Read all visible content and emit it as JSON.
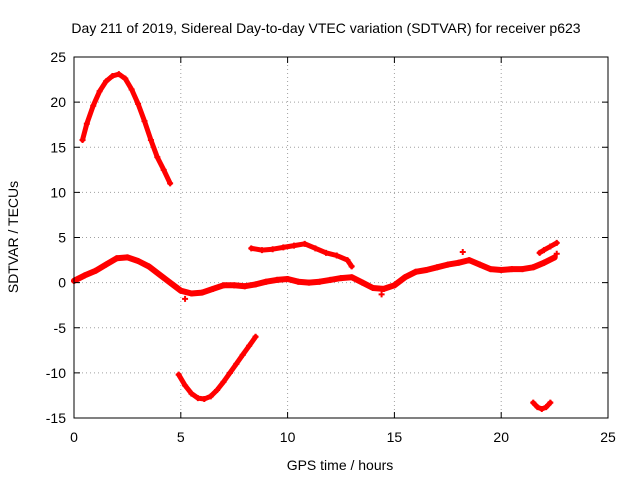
{
  "chart_data": {
    "type": "scatter",
    "title": "Day 211 of 2019, Sidereal Day-to-day VTEC variation (SDTVAR) for receiver p623",
    "xlabel": "GPS time / hours",
    "ylabel": "SDTVAR / TECUs",
    "xlim": [
      0,
      25
    ],
    "ylim": [
      -15,
      25
    ],
    "x_ticks": [
      0,
      5,
      10,
      15,
      20,
      25
    ],
    "y_ticks": [
      -15,
      -10,
      -5,
      0,
      5,
      10,
      15,
      20,
      25
    ],
    "x_tick_labels": [
      "0",
      "5",
      "10",
      "15",
      "20",
      "25"
    ],
    "y_tick_labels": [
      "-15",
      "-10",
      "-5",
      "0",
      "5",
      "10",
      "15",
      "20",
      "25"
    ],
    "grid": true,
    "marker_color": "#ff0000",
    "series": [
      {
        "name": "upper-arc",
        "x": [
          0.4,
          0.6,
          0.9,
          1.2,
          1.5,
          1.8,
          2.1,
          2.4,
          2.7,
          3.0,
          3.3,
          3.6,
          3.9,
          4.2,
          4.5
        ],
        "y": [
          15.8,
          17.6,
          19.6,
          21.2,
          22.3,
          22.9,
          23.1,
          22.6,
          21.4,
          19.8,
          17.9,
          15.8,
          13.9,
          12.5,
          11.0
        ]
      },
      {
        "name": "main-band",
        "x": [
          0.0,
          0.5,
          1.0,
          1.5,
          2.0,
          2.5,
          3.0,
          3.5,
          4.0,
          4.5,
          5.0,
          5.5,
          6.0,
          6.5,
          7.0,
          7.5,
          8.0,
          8.5,
          9.0,
          9.5,
          10.0,
          10.5,
          11.0,
          11.5,
          12.0,
          12.5,
          13.0,
          13.5,
          14.0,
          14.5,
          15.0,
          15.5,
          16.0,
          16.5,
          17.0,
          17.5,
          18.0,
          18.5,
          19.0,
          19.5,
          20.0,
          20.5,
          21.0,
          21.5,
          22.0,
          22.5
        ],
        "y": [
          0.2,
          0.8,
          1.3,
          2.0,
          2.7,
          2.8,
          2.4,
          1.8,
          0.9,
          0.0,
          -0.9,
          -1.2,
          -1.1,
          -0.7,
          -0.3,
          -0.3,
          -0.4,
          -0.2,
          0.1,
          0.3,
          0.4,
          0.1,
          0.0,
          0.1,
          0.3,
          0.5,
          0.6,
          0.0,
          -0.6,
          -0.7,
          -0.3,
          0.6,
          1.2,
          1.4,
          1.7,
          2.0,
          2.2,
          2.5,
          2.0,
          1.5,
          1.4,
          1.5,
          1.5,
          1.7,
          2.2,
          2.8
        ]
      },
      {
        "name": "middle-arc",
        "x": [
          8.3,
          8.8,
          9.3,
          9.8,
          10.3,
          10.8,
          11.3,
          11.8,
          12.3,
          12.8,
          13.0
        ],
        "y": [
          3.8,
          3.6,
          3.7,
          3.9,
          4.1,
          4.3,
          3.8,
          3.3,
          3.0,
          2.5,
          1.8
        ]
      },
      {
        "name": "lower-arc",
        "x": [
          4.9,
          5.2,
          5.5,
          5.8,
          6.1,
          6.4,
          6.7,
          7.0,
          7.3,
          7.6,
          7.9,
          8.2,
          8.5
        ],
        "y": [
          -10.2,
          -11.4,
          -12.3,
          -12.8,
          -12.9,
          -12.6,
          -11.9,
          -11.0,
          -10.0,
          -9.0,
          -8.0,
          -7.0,
          -6.0
        ]
      },
      {
        "name": "right-bottom",
        "x": [
          21.5,
          21.7,
          21.9,
          22.1,
          22.3
        ],
        "y": [
          -13.3,
          -13.8,
          -14.0,
          -13.8,
          -13.3
        ]
      },
      {
        "name": "right-top",
        "x": [
          21.8,
          22.0,
          22.3,
          22.6
        ],
        "y": [
          3.3,
          3.6,
          4.0,
          4.4
        ]
      },
      {
        "name": "outliers",
        "x": [
          18.2,
          22.6,
          5.2,
          14.4
        ],
        "y": [
          3.4,
          3.2,
          -1.8,
          -1.3
        ]
      }
    ]
  }
}
